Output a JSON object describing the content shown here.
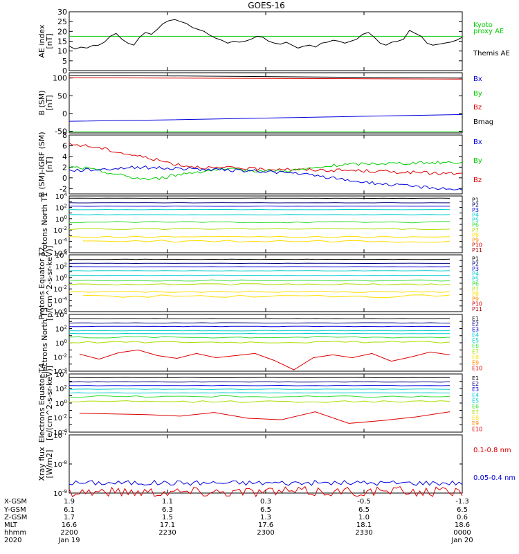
{
  "title": "GOES-16",
  "colors": {
    "black": "#000000",
    "blue": "#0000dd",
    "green": "#00cc00",
    "red": "#dd0000",
    "navy": "#000080",
    "cyan": "#00cccc",
    "lightgreen": "#33dd33",
    "yellowgreen": "#aadd00",
    "yellow": "#ffdd00",
    "orange": "#ff8800",
    "darkred": "#aa0000"
  },
  "chart_data": [
    {
      "type": "line",
      "id": "ae",
      "ylabel": "AE index [nT]",
      "ylim": [
        0,
        30
      ],
      "yticks": [
        "0",
        "5",
        "10",
        "15",
        "20",
        "25",
        "30"
      ],
      "legend": [
        {
          "label": "Kyoto",
          "color": "#00cc00"
        },
        {
          "label": "proxy AE",
          "color": "#00cc00"
        },
        {
          "label": "Themis AE",
          "color": "#000000"
        }
      ],
      "series": [
        {
          "name": "Kyoto",
          "color": "#00cc00",
          "values": [
            17.5,
            17.5
          ]
        },
        {
          "name": "Themis AE",
          "color": "#000000",
          "values": [
            12.5,
            11.0,
            12.0,
            11.5,
            12.8,
            13.0,
            14.5,
            17.5,
            19.0,
            16.0,
            14.0,
            13.0,
            17.0,
            19.5,
            18.5,
            21.0,
            24.0,
            25.5,
            26.0,
            25.0,
            24.0,
            22.0,
            21.0,
            20.0,
            18.0,
            16.5,
            15.5,
            14.0,
            15.0,
            14.5,
            15.0,
            16.0,
            17.5,
            17.0,
            15.0,
            14.0,
            13.5,
            14.5,
            13.0,
            11.5,
            12.5,
            13.0,
            12.0,
            14.0,
            14.5,
            15.5,
            15.0,
            14.0,
            15.0,
            16.0,
            18.5,
            19.5,
            17.0,
            14.0,
            13.0,
            14.5,
            15.0,
            16.0,
            20.5,
            19.0,
            17.5,
            14.0,
            13.0,
            13.5,
            14.0,
            14.5,
            15.5,
            17.0
          ]
        }
      ]
    },
    {
      "type": "line",
      "id": "bsm",
      "ylabel": "B (SM) [nT]",
      "ylim": [
        -55,
        115
      ],
      "yticks": [
        "-50",
        "0",
        "50",
        "100"
      ],
      "legend": [
        {
          "label": "Bx",
          "color": "#0000dd"
        },
        {
          "label": "By",
          "color": "#00cc00"
        },
        {
          "label": "Bz",
          "color": "#dd0000"
        },
        {
          "label": "Bmag",
          "color": "#000000"
        }
      ],
      "series": [
        {
          "name": "Bmag",
          "color": "#000000",
          "values": [
            107,
            106,
            104,
            102,
            100
          ]
        },
        {
          "name": "Bz",
          "color": "#dd0000",
          "values": [
            101,
            100,
            99,
            98,
            97
          ]
        },
        {
          "name": "Bx",
          "color": "#0000dd",
          "values": [
            -22,
            -18,
            -13,
            -8,
            -3
          ]
        },
        {
          "name": "By",
          "color": "#00cc00",
          "values": [
            -52,
            -52,
            -52,
            -52,
            -52
          ]
        }
      ]
    },
    {
      "type": "line",
      "id": "bdiff",
      "ylabel": "B (SM)-IGRF (SM) [nT]",
      "ylim": [
        -3,
        8
      ],
      "yticks": [
        "-2",
        "0",
        "2",
        "4",
        "6",
        "8"
      ],
      "legend": [
        {
          "label": "Bx",
          "color": "#0000dd"
        },
        {
          "label": "By",
          "color": "#00cc00"
        },
        {
          "label": "Bz",
          "color": "#dd0000"
        }
      ],
      "series": [
        {
          "name": "Bz",
          "color": "#dd0000",
          "values": [
            6.3,
            6.0,
            5.5,
            4.8,
            4.2,
            3.6,
            2.9,
            2.3,
            2.0,
            1.8,
            1.9,
            1.7,
            1.6,
            1.7,
            1.5,
            1.5,
            1.4,
            1.4,
            1.3,
            1.2,
            1.1,
            1.0,
            0.9,
            0.8,
            0.7
          ]
        },
        {
          "name": "By",
          "color": "#00cc00",
          "values": [
            2.0,
            1.8,
            1.2,
            0.6,
            0.0,
            -0.3,
            0.2,
            0.8,
            1.2,
            1.5,
            1.5,
            1.4,
            1.3,
            1.3,
            1.5,
            1.8,
            2.2,
            2.5,
            2.6,
            2.7,
            2.7,
            2.8,
            2.8,
            2.9,
            2.9
          ]
        },
        {
          "name": "Bx",
          "color": "#0000dd",
          "values": [
            1.4,
            1.5,
            1.6,
            1.8,
            2.0,
            1.9,
            1.8,
            1.7,
            1.6,
            1.5,
            1.4,
            1.3,
            1.2,
            1.0,
            0.8,
            0.4,
            0.0,
            -0.4,
            -0.8,
            -1.1,
            -1.4,
            -1.6,
            -1.8,
            -2.0,
            -2.2
          ]
        }
      ]
    },
    {
      "type": "line",
      "id": "protons_t1",
      "ylabel": "Protons North T1",
      "yscale": "log",
      "ylim_exp": [
        -6,
        4
      ],
      "ytick_exps": [
        -6,
        -4,
        -2,
        0,
        2,
        4
      ],
      "legend": [
        "P1",
        "P2",
        "P3",
        "P4",
        "P5",
        "P6",
        "P7",
        "P8",
        "P9",
        "P10",
        "P11"
      ],
      "legend_colors": [
        "#000000",
        "#000080",
        "#0000dd",
        "#00cccc",
        "#00cccc",
        "#33dd33",
        "#aadd00",
        "#ffdd00",
        "#ff8800",
        "#dd0000",
        "#aa0000"
      ],
      "levels": [
        3.6,
        2.8,
        2.2,
        1.6,
        0.7,
        -0.6,
        -1.8,
        -3.2
      ]
    },
    {
      "type": "line",
      "id": "protons_t2",
      "ylabel": "Protons Equator T2 [p/(cm^2-s-sr-keV)]",
      "yscale": "log",
      "ylim_exp": [
        -6,
        4
      ],
      "ytick_exps": [
        -6,
        -4,
        -2,
        0,
        2,
        4
      ],
      "legend": [
        "P1",
        "P2",
        "P3",
        "P4",
        "P5",
        "P6",
        "P7",
        "P8",
        "P9",
        "P10",
        "P11"
      ],
      "legend_colors": [
        "#000000",
        "#000080",
        "#0000dd",
        "#00cccc",
        "#00cccc",
        "#33dd33",
        "#aadd00",
        "#ffdd00",
        "#ff8800",
        "#dd0000",
        "#aa0000"
      ],
      "levels": [
        3.2,
        2.5,
        1.9,
        1.2,
        0.4,
        -0.5,
        -1.2,
        -2.5
      ]
    },
    {
      "type": "line",
      "id": "electrons_t3",
      "ylabel": "Electrons North T3",
      "yscale": "log",
      "ylim_exp": [
        -4,
        4
      ],
      "ytick_exps": [
        -4,
        -2,
        0,
        2,
        4
      ],
      "legend": [
        "E1",
        "E2",
        "E3",
        "E4",
        "E5",
        "E6",
        "E7",
        "E8",
        "E9",
        "E10"
      ],
      "legend_colors": [
        "#000000",
        "#000080",
        "#0000dd",
        "#00cccc",
        "#00cccc",
        "#33dd33",
        "#aadd00",
        "#ffdd00",
        "#ff8800",
        "#dd0000"
      ],
      "levels": [
        3.4,
        2.8,
        2.3,
        1.7,
        1.3,
        0.8,
        0.1
      ],
      "noisy": [
        -1.6,
        -2.3,
        -1.4,
        -1.0,
        -1.8,
        -2.2,
        -1.5,
        -2.1,
        -1.8,
        -1.5,
        -2.5,
        -3.8,
        -2.1,
        -1.7,
        -2.1,
        -1.5,
        -2.6,
        -2.0,
        -1.3,
        -1.7
      ]
    },
    {
      "type": "line",
      "id": "electrons_t4",
      "ylabel": "Electrons Equator T4 [e/(cm^2-s-sr-keV)]",
      "yscale": "log",
      "ylim_exp": [
        -4,
        4
      ],
      "ytick_exps": [
        -4,
        -2,
        0,
        2,
        4
      ],
      "legend": [
        "E1",
        "E2",
        "E3",
        "E4",
        "E5",
        "E6",
        "E7",
        "E8",
        "E9",
        "E10"
      ],
      "legend_colors": [
        "#000000",
        "#000080",
        "#0000dd",
        "#00cccc",
        "#00cccc",
        "#33dd33",
        "#aadd00",
        "#ffdd00",
        "#ff8800",
        "#dd0000"
      ],
      "levels": [
        3.5,
        2.9,
        2.4,
        1.9,
        1.4,
        0.9,
        0.2
      ],
      "noisy": [
        -1.4,
        -1.5,
        -1.6,
        -1.8,
        -1.3,
        -2.1,
        -2.3,
        -1.2,
        -2.8,
        -2.4,
        -1.9,
        -1.2
      ]
    },
    {
      "type": "line",
      "id": "xray",
      "ylabel": "Xray flux [W/m2]",
      "yscale": "log",
      "ylim_exp": [
        -9,
        -7
      ],
      "ytick_exps": [
        -9,
        -8,
        -7
      ],
      "legend": [
        {
          "label": "0.1-0.8 nm",
          "color": "#dd0000"
        },
        {
          "label": "0.05-0.4 nm",
          "color": "#0000dd"
        }
      ],
      "series": [
        {
          "name": "0.05-0.4 nm",
          "color": "#0000dd",
          "mean_exp": -8.65
        },
        {
          "name": "0.1-0.8 nm",
          "color": "#dd0000",
          "mean_exp": -8.95
        }
      ]
    }
  ],
  "time_axis": {
    "row_labels": [
      "X-GSM",
      "Y-GSM",
      "Z-GSM",
      "MLT",
      "hhmm",
      "2020"
    ],
    "columns": [
      {
        "values": [
          "1.9",
          "6.1",
          "1.7",
          "16.6",
          "2200",
          "Jan 19"
        ]
      },
      {
        "values": [
          "1.1",
          "6.3",
          "1.5",
          "17.1",
          "2230",
          ""
        ]
      },
      {
        "values": [
          "0.3",
          "6.5",
          "1.3",
          "17.6",
          "2300",
          ""
        ]
      },
      {
        "values": [
          "-0.5",
          "6.5",
          "1.0",
          "18.1",
          "2330",
          ""
        ]
      },
      {
        "values": [
          "-1.3",
          "6.5",
          "0.6",
          "18.6",
          "0000",
          "Jan 20"
        ]
      }
    ]
  }
}
